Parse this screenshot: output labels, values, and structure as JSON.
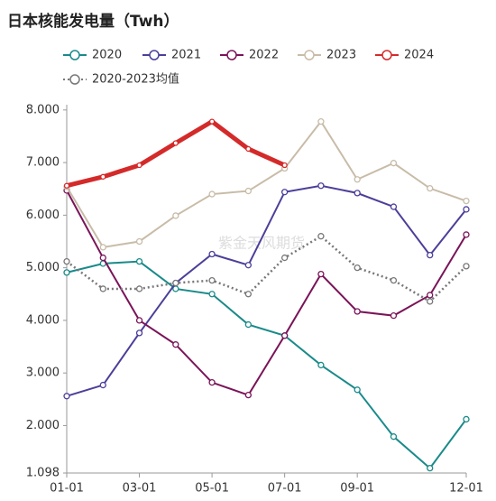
{
  "chart_data": {
    "type": "line",
    "title": "日本核能发电量（Twh）",
    "watermark": "紫金天风期货",
    "categories": [
      "01-01",
      null,
      "03-01",
      null,
      "05-01",
      null,
      "07-01",
      null,
      "09-01",
      null,
      null,
      "12-01"
    ],
    "series": [
      {
        "name": "2020",
        "color": "#1a8a8a",
        "values": [
          4.91,
          5.08,
          5.12,
          4.6,
          4.5,
          3.92,
          3.71,
          3.15,
          2.68,
          1.79,
          1.19,
          2.12
        ]
      },
      {
        "name": "2021",
        "color": "#4b3f99",
        "values": [
          2.56,
          2.77,
          3.76,
          4.71,
          5.26,
          5.05,
          6.44,
          6.56,
          6.42,
          6.16,
          5.24,
          6.11
        ]
      },
      {
        "name": "2022",
        "color": "#7a1458",
        "values": [
          6.47,
          5.19,
          4.0,
          3.54,
          2.82,
          2.58,
          3.71,
          4.88,
          4.17,
          4.09,
          4.48,
          5.63
        ]
      },
      {
        "name": "2023",
        "color": "#c8bca8",
        "values": [
          6.54,
          5.39,
          5.5,
          5.99,
          6.4,
          6.46,
          6.89,
          7.78,
          6.68,
          6.99,
          6.51,
          6.27
        ]
      },
      {
        "name": "2024",
        "color": "#d42a2a",
        "values": [
          6.56,
          6.73,
          6.95,
          7.37,
          7.78,
          7.26,
          6.95,
          null,
          null,
          null,
          null,
          null
        ]
      },
      {
        "name": "2020-2023均值",
        "color": "#777777",
        "dashed": true,
        "values": [
          5.12,
          4.6,
          4.6,
          4.71,
          4.76,
          4.5,
          5.19,
          5.6,
          5.0,
          4.76,
          4.36,
          5.03
        ]
      }
    ],
    "ylim": [
      1.098,
      8.1
    ],
    "yticks": [
      1.098,
      {
        "value": 2,
        "label": "2.000"
      },
      {
        "value": 3,
        "label": "3.000"
      },
      {
        "value": 4,
        "label": "4.000"
      },
      {
        "value": 5,
        "label": "5.000"
      },
      {
        "value": 6,
        "label": "6.000"
      },
      {
        "value": 7,
        "label": "7.000"
      },
      {
        "value": 8,
        "label": "8.000"
      }
    ],
    "grid": false
  }
}
